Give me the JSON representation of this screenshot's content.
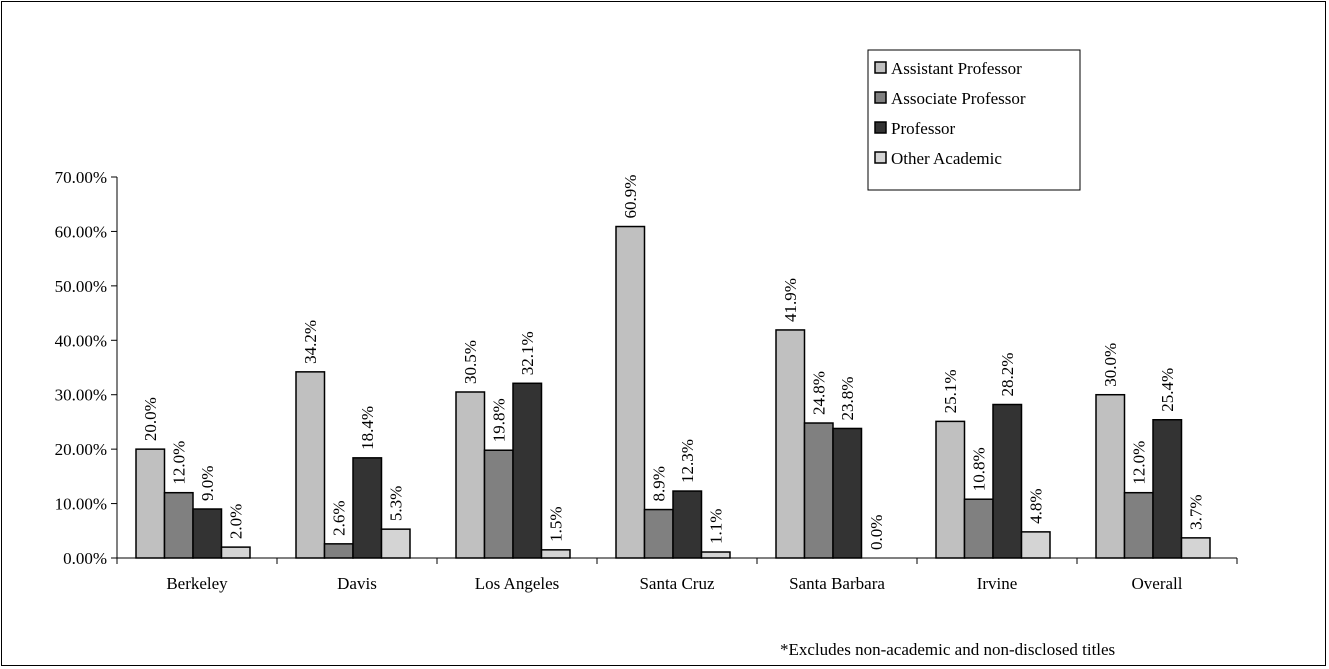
{
  "chart_data": {
    "type": "bar",
    "categories": [
      "Berkeley",
      "Davis",
      "Los Angeles",
      "Santa Cruz",
      "Santa Barbara",
      "Irvine",
      "Overall"
    ],
    "series": [
      {
        "name": "Assistant Professor",
        "color": "#c0c0c0",
        "values": [
          20.0,
          34.2,
          30.5,
          60.9,
          41.9,
          25.1,
          30.0
        ]
      },
      {
        "name": "Associate Professor",
        "color": "#808080",
        "values": [
          12.0,
          2.6,
          19.8,
          8.9,
          24.8,
          10.8,
          12.0
        ]
      },
      {
        "name": "Professor",
        "color": "#333333",
        "values": [
          9.0,
          18.4,
          32.1,
          12.3,
          23.8,
          28.2,
          25.4
        ]
      },
      {
        "name": "Other Academic",
        "color": "#d4d4d4",
        "values": [
          2.0,
          5.3,
          1.5,
          1.1,
          0.0,
          4.8,
          3.7
        ]
      }
    ],
    "data_labels": [
      [
        "20.0%",
        "34.2%",
        "30.5%",
        "60.9%",
        "41.9%",
        "25.1%",
        "30.0%"
      ],
      [
        "12.0%",
        "2.6%",
        "19.8%",
        "8.9%",
        "24.8%",
        "10.8%",
        "12.0%"
      ],
      [
        "9.0%",
        "18.4%",
        "32.1%",
        "12.3%",
        "23.8%",
        "28.2%",
        "25.4%"
      ],
      [
        "2.0%",
        "5.3%",
        "1.5%",
        "1.1%",
        "0.0%",
        "4.8%",
        "3.7%"
      ]
    ],
    "y_ticks": [
      "0.00%",
      "10.00%",
      "20.00%",
      "30.00%",
      "40.00%",
      "50.00%",
      "60.00%",
      "70.00%"
    ],
    "ylim": [
      0,
      70
    ],
    "grid": false,
    "legend_position": "top-right",
    "footnote": "*Excludes non-academic and non-disclosed titles"
  }
}
